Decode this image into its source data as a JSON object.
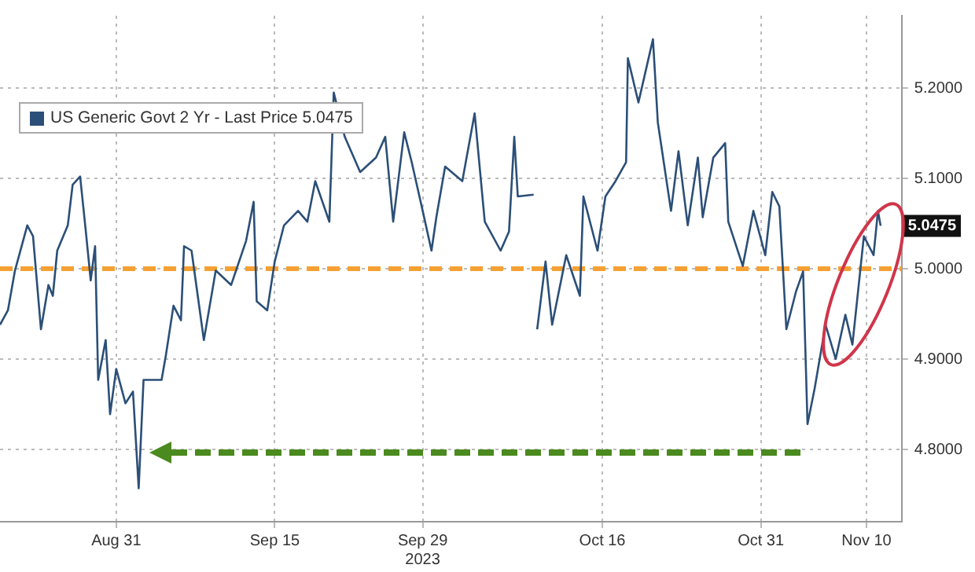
{
  "chart_data": {
    "type": "line",
    "x": [
      "2023-08-20T00:00",
      "2023-08-20T18:00",
      "2023-08-21T10:00",
      "2023-08-22T14:00",
      "2023-08-23T03:00",
      "2023-08-23T21:00",
      "2023-08-24T14:00",
      "2023-08-25T00:00",
      "2023-08-25T10:00",
      "2023-08-26T10:00",
      "2023-08-26T21:00",
      "2023-08-27T14:00",
      "2023-08-28T03:00",
      "2023-08-28T14:00",
      "2023-08-29T00:00",
      "2023-08-29T07:00",
      "2023-08-30T00:00",
      "2023-08-30T10:00",
      "2023-08-31T00:00",
      "2023-08-31T21:00",
      "2023-09-01T14:00",
      "2023-09-02T03:00",
      "2023-09-02T14:00",
      "2023-09-04T07:00",
      "2023-09-04T17:00",
      "2023-09-05T10:00",
      "2023-09-06T03:00",
      "2023-09-06T10:00",
      "2023-09-07T03:00",
      "2023-09-08T07:00",
      "2023-09-09T10:00",
      "2023-09-10T21:00",
      "2023-09-12T07:00",
      "2023-09-13T00:00",
      "2023-09-13T07:00",
      "2023-09-14T07:00",
      "2023-09-15T00:00",
      "2023-09-15T21:00",
      "2023-09-17T05:00",
      "2023-09-18T02:00",
      "2023-09-18T20:00",
      "2023-09-20T04:00",
      "2023-09-20T14:00",
      "2023-09-21T15:00",
      "2023-09-23T02:00",
      "2023-09-24T14:00",
      "2023-09-25T11:00",
      "2023-09-26T05:00",
      "2023-09-27T06:00",
      "2023-09-27T23:00",
      "2023-09-29T00:00",
      "2023-09-29T20:00",
      "2023-09-30T07:00",
      "2023-10-01T03:00",
      "2023-10-02T18:00",
      "2023-10-03T22:00",
      "2023-10-04T21:00",
      "2023-10-06T09:00",
      "2023-10-07T04:00",
      "2023-10-07T16:00",
      "2023-10-08T00:00",
      "2023-10-09T12:00",
      "2023-10-09T16:00",
      "2023-10-09T20:00",
      "2023-10-10T15:00",
      "2023-10-11T06:00",
      "2023-10-12T14:00",
      "2023-10-13T21:00",
      "2023-10-14T05:00",
      "2023-10-15T13:00",
      "2023-10-16T07:00",
      "2023-10-17T06:00",
      "2023-10-18T06:00",
      "2023-10-18T10:00",
      "2023-10-19T10:00",
      "2023-10-20T19:00",
      "2023-10-21T06:00",
      "2023-10-22T12:00",
      "2023-10-23T05:00",
      "2023-10-24T02:00",
      "2023-10-25T01:00",
      "2023-10-25T12:00",
      "2023-10-26T12:00",
      "2023-10-27T15:00",
      "2023-10-27T22:00",
      "2023-10-29T07:00",
      "2023-10-30T07:00",
      "2023-10-31T10:00",
      "2023-11-01T02:00",
      "2023-11-01T18:00",
      "2023-11-02T10:00",
      "2023-11-03T08:00",
      "2023-11-04T00:00",
      "2023-11-04T10:00",
      "2023-11-05T02:00",
      "2023-11-06T03:00",
      "2023-11-07T02:00",
      "2023-11-08T00:00",
      "2023-11-08T16:00",
      "2023-11-09T18:00",
      "2023-11-10T16:00",
      "2023-11-11T02:00",
      "2023-11-11T08:00"
    ],
    "series": [
      {
        "name": "US Generic Govt 2 Yr - Last Price 5.0475",
        "color": "#2b4f78",
        "values": [
          4.938,
          4.954,
          4.998,
          5.048,
          5.036,
          4.933,
          4.982,
          4.97,
          5.02,
          5.048,
          5.093,
          5.102,
          5.041,
          4.987,
          5.025,
          4.877,
          4.921,
          4.839,
          4.889,
          4.851,
          4.864,
          4.757,
          4.877,
          4.877,
          4.905,
          4.959,
          4.943,
          5.025,
          5.02,
          4.921,
          4.998,
          4.982,
          5.031,
          5.074,
          4.964,
          4.954,
          5.008,
          5.048,
          5.064,
          5.052,
          5.097,
          5.052,
          5.195,
          5.146,
          5.107,
          5.123,
          5.146,
          5.052,
          5.151,
          5.118,
          5.064,
          5.02,
          5.057,
          5.113,
          5.097,
          5.172,
          5.052,
          5.02,
          5.041,
          5.146,
          5.08,
          5.082,
          null,
          4.933,
          5.008,
          4.938,
          5.015,
          4.97,
          5.08,
          5.02,
          5.08,
          5.097,
          5.118,
          5.233,
          5.184,
          5.254,
          5.162,
          5.064,
          5.13,
          5.048,
          5.123,
          5.057,
          5.123,
          5.139,
          5.052,
          5.003,
          5.064,
          5.015,
          5.085,
          5.069,
          4.933,
          4.975,
          4.997,
          4.828,
          4.867,
          4.938,
          4.9,
          4.949,
          4.916,
          5.036,
          5.015,
          5.064,
          5.0475
        ]
      }
    ],
    "xlim": [
      "2023-08-20T00:00",
      "2023-11-13T08:00"
    ],
    "xticks": [
      {
        "value": "2023-08-31",
        "label": "Aug 31"
      },
      {
        "value": "2023-09-15",
        "label": "Sep 15"
      },
      {
        "value": "2023-09-29",
        "label": "Sep 29\n2023"
      },
      {
        "value": "2023-10-16",
        "label": "Oct 16"
      },
      {
        "value": "2023-10-31",
        "label": "Oct 31"
      },
      {
        "value": "2023-11-10",
        "label": "Nov 10"
      }
    ],
    "ylim": [
      4.72,
      5.28
    ],
    "yticks": [
      {
        "value": 4.8,
        "label": "4.8000"
      },
      {
        "value": 4.9,
        "label": "4.9000"
      },
      {
        "value": 5.0,
        "label": "5.0000"
      },
      {
        "value": 5.1,
        "label": "5.1000"
      },
      {
        "value": 5.2,
        "label": "5.2000"
      }
    ],
    "ref_lines": [
      {
        "axis": "y",
        "value": 5.0,
        "color": "#f5a033",
        "line_style": "dashed"
      }
    ],
    "annotations": [
      {
        "text": "5.0475",
        "y": 5.0475
      }
    ],
    "grid": true,
    "legend": "top left",
    "marker": "none",
    "line_style": "solid"
  }
}
